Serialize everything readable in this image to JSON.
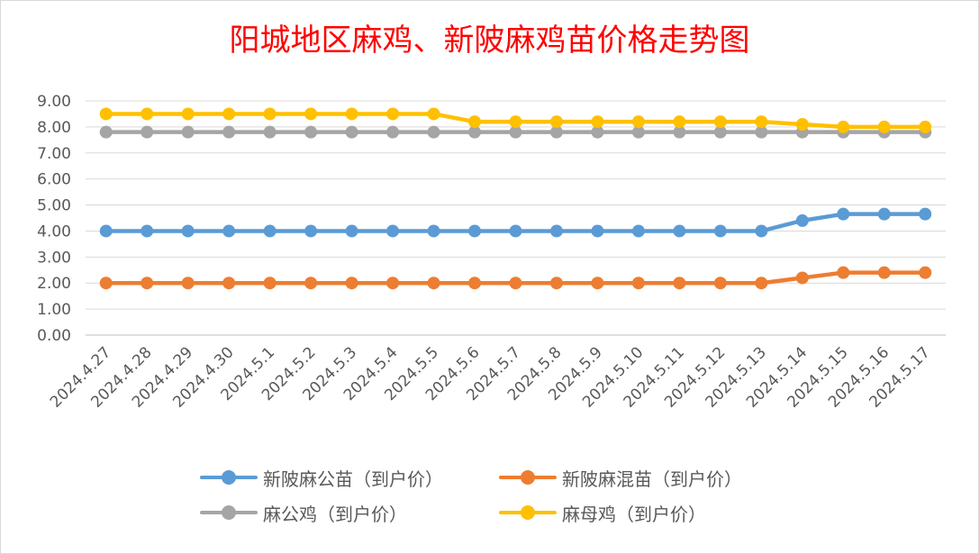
{
  "chart_data": {
    "type": "line",
    "title": "阳城地区麻鸡、新陂麻鸡苗价格走势图",
    "xlabel": "",
    "ylabel": "",
    "categories": [
      "2024.4.27",
      "2024.4.28",
      "2024.4.29",
      "2024.4.30",
      "2024.5.1",
      "2024.5.2",
      "2024.5.3",
      "2024.5.4",
      "2024.5.5",
      "2024.5.6",
      "2024.5.7",
      "2024.5.8",
      "2024.5.9",
      "2024.5.10",
      "2024.5.11",
      "2024.5.12",
      "2024.5.13",
      "2024.5.14",
      "2024.5.15",
      "2024.5.16",
      "2024.5.17"
    ],
    "ylim": [
      0,
      9
    ],
    "yticks": [
      "0.00",
      "1.00",
      "2.00",
      "3.00",
      "4.00",
      "5.00",
      "6.00",
      "7.00",
      "8.00",
      "9.00"
    ],
    "grid": true,
    "legend_position": "bottom",
    "series": [
      {
        "name": "新陂麻公苗（到户价）",
        "color": "#5b9bd5",
        "values": [
          4.0,
          4.0,
          4.0,
          4.0,
          4.0,
          4.0,
          4.0,
          4.0,
          4.0,
          4.0,
          4.0,
          4.0,
          4.0,
          4.0,
          4.0,
          4.0,
          4.0,
          4.4,
          4.65,
          4.65,
          4.65
        ]
      },
      {
        "name": "新陂麻混苗（到户价）",
        "color": "#ed7d31",
        "values": [
          2.0,
          2.0,
          2.0,
          2.0,
          2.0,
          2.0,
          2.0,
          2.0,
          2.0,
          2.0,
          2.0,
          2.0,
          2.0,
          2.0,
          2.0,
          2.0,
          2.0,
          2.2,
          2.4,
          2.4,
          2.4
        ]
      },
      {
        "name": "麻公鸡（到户价）",
        "color": "#a5a5a5",
        "values": [
          7.8,
          7.8,
          7.8,
          7.8,
          7.8,
          7.8,
          7.8,
          7.8,
          7.8,
          7.8,
          7.8,
          7.8,
          7.8,
          7.8,
          7.8,
          7.8,
          7.8,
          7.8,
          7.8,
          7.8,
          7.8
        ]
      },
      {
        "name": "麻母鸡（到户价）",
        "color": "#ffc000",
        "values": [
          8.5,
          8.5,
          8.5,
          8.5,
          8.5,
          8.5,
          8.5,
          8.5,
          8.5,
          8.2,
          8.2,
          8.2,
          8.2,
          8.2,
          8.2,
          8.2,
          8.2,
          8.1,
          8.0,
          8.0,
          8.0
        ]
      }
    ]
  }
}
